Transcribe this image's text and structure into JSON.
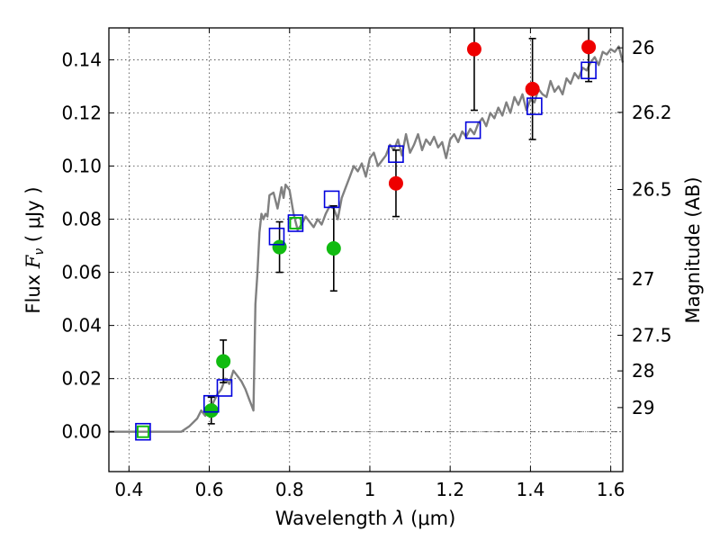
{
  "chart_data": {
    "type": "scatter",
    "xlabel_prefix": "Wavelength  ",
    "xlabel_symbol": "λ",
    "xlabel_unit": " (μm)",
    "ylabel_prefix": "Flux  ",
    "ylabel_symbol": "F",
    "ylabel_sub": "ν",
    "ylabel_unit": "  ( μJy )",
    "y2label": "Magnitude (AB)",
    "xlim": [
      0.35,
      1.63
    ],
    "ylim": [
      -0.015,
      0.152
    ],
    "x_ticks": [
      0.4,
      0.6,
      0.8,
      1.0,
      1.2,
      1.4,
      1.6
    ],
    "x_tick_labels": [
      "0.4",
      "0.6",
      "0.8",
      "1",
      "1.2",
      "1.4",
      "1.6"
    ],
    "y_ticks": [
      0.0,
      0.02,
      0.04,
      0.06,
      0.08,
      0.1,
      0.12,
      0.14
    ],
    "y_tick_labels": [
      "0.00",
      "0.02",
      "0.04",
      "0.06",
      "0.08",
      "0.10",
      "0.12",
      "0.14"
    ],
    "mag_ticks": [
      {
        "label": "26",
        "flux": 0.1445
      },
      {
        "label": "26.2",
        "flux": 0.1202
      },
      {
        "label": "26.5",
        "flux": 0.0912
      },
      {
        "label": "27",
        "flux": 0.0575
      },
      {
        "label": "27.5",
        "flux": 0.0363
      },
      {
        "label": "28",
        "flux": 0.0229
      },
      {
        "label": "29",
        "flux": 0.0091
      }
    ],
    "grid": true,
    "zero_line": true,
    "colors": {
      "model": "#808080",
      "green": "#11bb11",
      "red": "#ee0000",
      "box": "#0000dd",
      "errorbar": "#000000"
    },
    "series": [
      {
        "name": "model SED",
        "style": "line",
        "x": [
          0.35,
          0.4,
          0.45,
          0.5,
          0.53,
          0.55,
          0.57,
          0.58,
          0.59,
          0.6,
          0.605,
          0.61,
          0.62,
          0.63,
          0.64,
          0.65,
          0.66,
          0.67,
          0.68,
          0.69,
          0.7,
          0.705,
          0.71,
          0.715,
          0.72,
          0.725,
          0.73,
          0.735,
          0.74,
          0.745,
          0.75,
          0.76,
          0.77,
          0.78,
          0.785,
          0.79,
          0.8,
          0.81,
          0.82,
          0.83,
          0.84,
          0.85,
          0.86,
          0.87,
          0.88,
          0.89,
          0.9,
          0.91,
          0.92,
          0.93,
          0.94,
          0.95,
          0.96,
          0.97,
          0.98,
          0.99,
          1.0,
          1.01,
          1.02,
          1.03,
          1.04,
          1.05,
          1.06,
          1.07,
          1.08,
          1.09,
          1.1,
          1.11,
          1.12,
          1.13,
          1.14,
          1.15,
          1.16,
          1.17,
          1.18,
          1.19,
          1.2,
          1.21,
          1.22,
          1.23,
          1.24,
          1.25,
          1.26,
          1.27,
          1.28,
          1.29,
          1.3,
          1.31,
          1.32,
          1.33,
          1.34,
          1.35,
          1.36,
          1.37,
          1.38,
          1.39,
          1.4,
          1.41,
          1.42,
          1.43,
          1.44,
          1.45,
          1.46,
          1.47,
          1.48,
          1.49,
          1.5,
          1.51,
          1.52,
          1.53,
          1.54,
          1.55,
          1.56,
          1.57,
          1.58,
          1.59,
          1.6,
          1.61,
          1.62,
          1.63
        ],
        "y": [
          0.0,
          0.0,
          0.0,
          0.0,
          0.0,
          0.002,
          0.005,
          0.008,
          0.006,
          0.01,
          0.007,
          0.011,
          0.014,
          0.016,
          0.02,
          0.018,
          0.023,
          0.021,
          0.019,
          0.016,
          0.012,
          0.01,
          0.008,
          0.048,
          0.06,
          0.075,
          0.082,
          0.08,
          0.082,
          0.081,
          0.089,
          0.09,
          0.084,
          0.092,
          0.088,
          0.093,
          0.091,
          0.082,
          0.076,
          0.078,
          0.081,
          0.079,
          0.077,
          0.08,
          0.078,
          0.082,
          0.085,
          0.084,
          0.08,
          0.088,
          0.092,
          0.096,
          0.1,
          0.098,
          0.101,
          0.096,
          0.103,
          0.105,
          0.1,
          0.102,
          0.104,
          0.108,
          0.106,
          0.11,
          0.104,
          0.112,
          0.105,
          0.108,
          0.112,
          0.106,
          0.11,
          0.108,
          0.111,
          0.107,
          0.109,
          0.103,
          0.11,
          0.112,
          0.109,
          0.113,
          0.111,
          0.114,
          0.112,
          0.116,
          0.118,
          0.115,
          0.12,
          0.118,
          0.122,
          0.119,
          0.124,
          0.12,
          0.126,
          0.123,
          0.127,
          0.121,
          0.125,
          0.124,
          0.129,
          0.127,
          0.126,
          0.132,
          0.128,
          0.13,
          0.127,
          0.133,
          0.131,
          0.135,
          0.133,
          0.137,
          0.136,
          0.139,
          0.141,
          0.138,
          0.143,
          0.142,
          0.144,
          0.143,
          0.145,
          0.139
        ]
      },
      {
        "name": "green points",
        "style": "marker-circle",
        "points": [
          {
            "x": 0.605,
            "y": 0.008,
            "err": 0.005
          },
          {
            "x": 0.635,
            "y": 0.0265,
            "err": 0.008
          },
          {
            "x": 0.775,
            "y": 0.0695,
            "err": 0.0095
          },
          {
            "x": 0.91,
            "y": 0.069,
            "err": 0.016
          }
        ]
      },
      {
        "name": "red points",
        "style": "marker-circle",
        "points": [
          {
            "x": 1.065,
            "y": 0.0935,
            "err": 0.0125
          },
          {
            "x": 1.26,
            "y": 0.144,
            "err": 0.023
          },
          {
            "x": 1.405,
            "y": 0.129,
            "err": 0.019
          },
          {
            "x": 1.545,
            "y": 0.1448,
            "err": 0.013
          }
        ]
      },
      {
        "name": "model photometry",
        "style": "marker-square-open",
        "points": [
          {
            "x": 0.435,
            "y": 0.0
          },
          {
            "x": 0.605,
            "y": 0.0105
          },
          {
            "x": 0.638,
            "y": 0.0165
          },
          {
            "x": 0.768,
            "y": 0.0735
          },
          {
            "x": 0.815,
            "y": 0.0785
          },
          {
            "x": 0.905,
            "y": 0.0875
          },
          {
            "x": 1.065,
            "y": 0.1045
          },
          {
            "x": 1.257,
            "y": 0.1135
          },
          {
            "x": 1.41,
            "y": 0.1225
          },
          {
            "x": 1.545,
            "y": 0.136
          }
        ]
      },
      {
        "name": "green box overlay",
        "style": "marker-square-green",
        "points": [
          {
            "x": 0.435,
            "y": 0.0
          },
          {
            "x": 0.815,
            "y": 0.0785
          }
        ]
      }
    ]
  }
}
